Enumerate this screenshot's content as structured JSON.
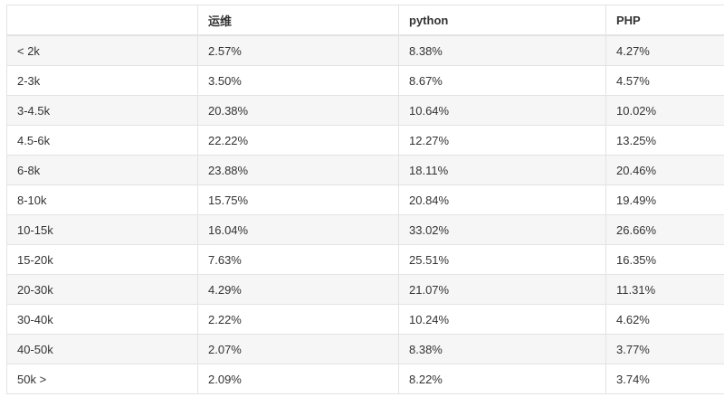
{
  "table": {
    "headers": [
      "",
      "运维",
      "python",
      "PHP"
    ],
    "rows": [
      [
        "< 2k",
        "2.57%",
        "8.38%",
        "4.27%"
      ],
      [
        "2-3k",
        "3.50%",
        "8.67%",
        "4.57%"
      ],
      [
        "3-4.5k",
        "20.38%",
        "10.64%",
        "10.02%"
      ],
      [
        "4.5-6k",
        "22.22%",
        "12.27%",
        "13.25%"
      ],
      [
        "6-8k",
        "23.88%",
        "18.11%",
        "20.46%"
      ],
      [
        "8-10k",
        "15.75%",
        "20.84%",
        "19.49%"
      ],
      [
        "10-15k",
        "16.04%",
        "33.02%",
        "26.66%"
      ],
      [
        "15-20k",
        "7.63%",
        "25.51%",
        "16.35%"
      ],
      [
        "20-30k",
        "4.29%",
        "21.07%",
        "11.31%"
      ],
      [
        "30-40k",
        "2.22%",
        "10.24%",
        "4.62%"
      ],
      [
        "40-50k",
        "2.07%",
        "8.38%",
        "3.77%"
      ],
      [
        "50k >",
        "2.09%",
        "8.22%",
        "3.74%"
      ]
    ]
  },
  "colors": {
    "stripe": "#f6f6f6",
    "border": "#e3e3e3",
    "text": "#333333"
  }
}
